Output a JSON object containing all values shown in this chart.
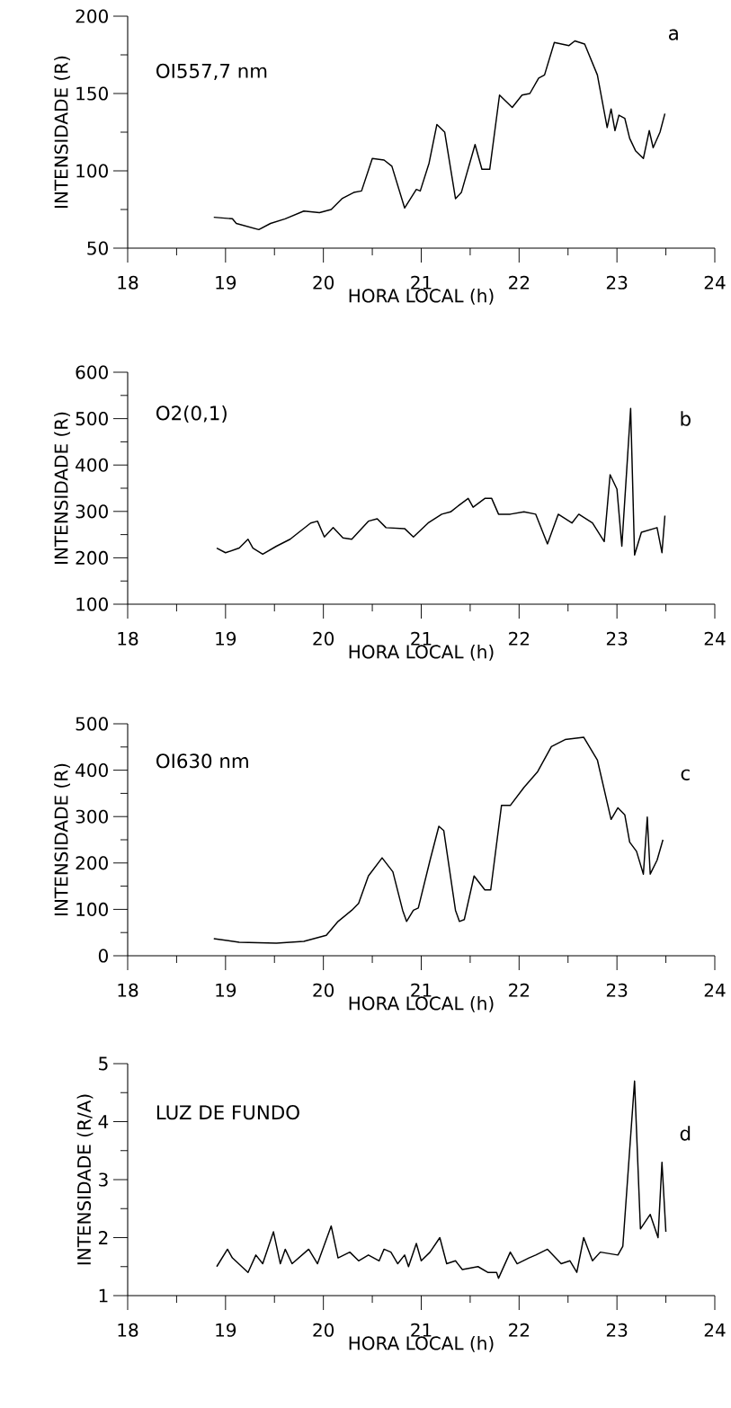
{
  "chart_data": [
    {
      "type": "line",
      "xlabel": "HORA LOCAL (h)",
      "ylabel": "INTENSIDADE (R)",
      "annotations": [
        "OI557,7 nm",
        "a"
      ],
      "color": "#000000",
      "xlim": [
        18,
        24
      ],
      "ylim": [
        50,
        200
      ],
      "xticks": [
        18,
        19,
        20,
        21,
        22,
        23,
        24
      ],
      "yticks": [
        50,
        100,
        150,
        200
      ],
      "x": [
        18.88,
        19.07,
        19.11,
        19.34,
        19.46,
        19.61,
        19.8,
        19.96,
        20.08,
        20.19,
        20.31,
        20.39,
        20.5,
        20.62,
        20.7,
        20.83,
        20.95,
        20.99,
        21.08,
        21.16,
        21.24,
        21.35,
        21.41,
        21.55,
        21.62,
        21.7,
        21.8,
        21.93,
        22.03,
        22.11,
        22.2,
        22.26,
        22.36,
        22.51,
        22.57,
        22.67,
        22.8,
        22.9,
        22.94,
        22.98,
        23.02,
        23.08,
        23.13,
        23.19,
        23.27,
        23.33,
        23.37,
        23.44,
        23.49
      ],
      "values": [
        70,
        69,
        66,
        62,
        66,
        69,
        74,
        73,
        75,
        82,
        86,
        87,
        108,
        107,
        103,
        76,
        88,
        87,
        105,
        130,
        125,
        82,
        86,
        117,
        101,
        101,
        149,
        141,
        149,
        150,
        160,
        162,
        183,
        181,
        184,
        182,
        162,
        128,
        140,
        126,
        136,
        134,
        121,
        113,
        108,
        126,
        115,
        125,
        137
      ]
    },
    {
      "type": "line",
      "xlabel": "HORA LOCAL (h)",
      "ylabel": "INTENSIDADE (R)",
      "annotations": [
        "O2(0,1)",
        "b"
      ],
      "color": "#000000",
      "xlim": [
        18,
        24
      ],
      "ylim": [
        100,
        600
      ],
      "xticks": [
        18,
        19,
        20,
        21,
        22,
        23,
        24
      ],
      "yticks": [
        100,
        200,
        300,
        400,
        500,
        600
      ],
      "x": [
        18.91,
        19.0,
        19.14,
        19.23,
        19.28,
        19.38,
        19.52,
        19.66,
        19.75,
        19.87,
        19.94,
        20.01,
        20.1,
        20.2,
        20.29,
        20.46,
        20.55,
        20.64,
        20.83,
        20.92,
        21.07,
        21.21,
        21.3,
        21.39,
        21.48,
        21.53,
        21.65,
        21.72,
        21.79,
        21.91,
        22.05,
        22.17,
        22.29,
        22.4,
        22.54,
        22.61,
        22.75,
        22.87,
        22.93,
        23.0,
        23.05,
        23.14,
        23.18,
        23.25,
        23.41,
        23.46,
        23.49
      ],
      "values": [
        221,
        211,
        221,
        240,
        221,
        208,
        225,
        240,
        255,
        275,
        279,
        245,
        265,
        243,
        240,
        279,
        284,
        265,
        263,
        245,
        275,
        294,
        299,
        314,
        328,
        309,
        328,
        328,
        294,
        294,
        299,
        294,
        230,
        294,
        275,
        294,
        275,
        235,
        379,
        348,
        225,
        522,
        206,
        255,
        265,
        211,
        291
      ]
    },
    {
      "type": "line",
      "xlabel": "HORA LOCAL (h)",
      "ylabel": "INTENSIDADE (R)",
      "annotations": [
        "OI630 nm",
        "c"
      ],
      "color": "#000000",
      "xlim": [
        18,
        24
      ],
      "ylim": [
        0,
        500
      ],
      "xticks": [
        18,
        19,
        20,
        21,
        22,
        23,
        24
      ],
      "yticks": [
        0,
        100,
        200,
        300,
        400,
        500
      ],
      "x": [
        18.88,
        19.14,
        19.52,
        19.8,
        20.03,
        20.15,
        20.29,
        20.36,
        20.46,
        20.6,
        20.71,
        20.81,
        20.85,
        20.92,
        20.97,
        21.09,
        21.18,
        21.23,
        21.35,
        21.39,
        21.44,
        21.54,
        21.65,
        21.71,
        21.82,
        21.91,
        22.05,
        22.19,
        22.33,
        22.47,
        22.66,
        22.8,
        22.94,
        23.01,
        23.08,
        23.13,
        23.2,
        23.27,
        23.31,
        23.34,
        23.41,
        23.47
      ],
      "values": [
        37,
        29,
        27,
        31,
        44,
        74,
        98,
        113,
        172,
        211,
        181,
        98,
        74,
        98,
        103,
        206,
        279,
        270,
        98,
        74,
        78,
        172,
        142,
        142,
        324,
        324,
        363,
        397,
        451,
        466,
        471,
        422,
        294,
        319,
        304,
        245,
        225,
        176,
        299,
        176,
        206,
        250
      ]
    },
    {
      "type": "line",
      "xlabel": "HORA LOCAL (h)",
      "ylabel": "INTENSIDADE (R/A)",
      "annotations": [
        "LUZ DE FUNDO",
        "d"
      ],
      "color": "#000000",
      "xlim": [
        18,
        24
      ],
      "ylim": [
        1,
        5
      ],
      "xticks": [
        18,
        19,
        20,
        21,
        22,
        23,
        24
      ],
      "yticks": [
        1,
        2,
        3,
        4,
        5
      ],
      "x": [
        18.91,
        19.02,
        19.07,
        19.23,
        19.31,
        19.38,
        19.49,
        19.56,
        19.61,
        19.68,
        19.85,
        19.94,
        20.08,
        20.15,
        20.27,
        20.36,
        20.46,
        20.57,
        20.62,
        20.69,
        20.76,
        20.83,
        20.87,
        20.95,
        21.0,
        21.09,
        21.19,
        21.26,
        21.35,
        21.42,
        21.58,
        21.68,
        21.77,
        21.79,
        21.91,
        21.98,
        22.1,
        22.17,
        22.29,
        22.43,
        22.52,
        22.59,
        22.66,
        22.75,
        22.83,
        23.01,
        23.06,
        23.18,
        23.24,
        23.34,
        23.42,
        23.46,
        23.5
      ],
      "values": [
        1.5,
        1.8,
        1.65,
        1.4,
        1.7,
        1.55,
        2.1,
        1.55,
        1.8,
        1.55,
        1.8,
        1.55,
        2.2,
        1.65,
        1.75,
        1.6,
        1.7,
        1.6,
        1.8,
        1.75,
        1.55,
        1.7,
        1.5,
        1.9,
        1.6,
        1.75,
        2.0,
        1.55,
        1.6,
        1.45,
        1.5,
        1.4,
        1.4,
        1.3,
        1.75,
        1.55,
        1.65,
        1.7,
        1.8,
        1.55,
        1.6,
        1.4,
        2.0,
        1.6,
        1.75,
        1.7,
        1.85,
        4.7,
        2.15,
        2.4,
        2.0,
        3.3,
        2.1
      ]
    }
  ]
}
